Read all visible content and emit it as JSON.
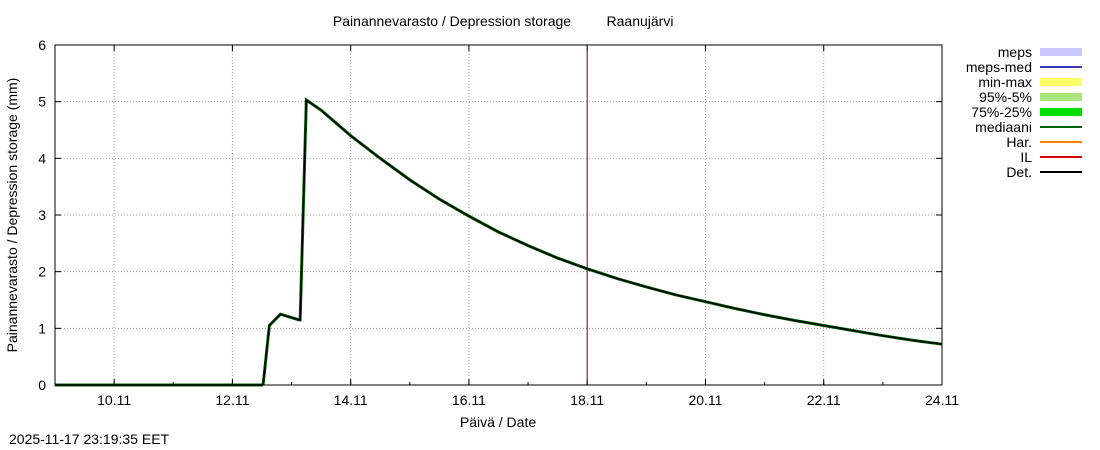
{
  "chart_data": {
    "type": "line",
    "title": "Painannevarasto / Depression storage",
    "station": "Raanujärvi",
    "xlabel": "Päivä / Date",
    "ylabel": "Painannevarasto / Depression storage (mm)",
    "xlim": [
      "2025-11-09",
      "2025-11-24"
    ],
    "ylim": [
      0,
      6
    ],
    "x_ticks": [
      "10.11",
      "12.11",
      "14.11",
      "16.11",
      "18.11",
      "20.11",
      "22.11",
      "24.11"
    ],
    "y_ticks": [
      "0",
      "1",
      "2",
      "3",
      "4",
      "5",
      "6"
    ],
    "grid": true,
    "legend_position": "right",
    "legend": [
      {
        "label": "meps",
        "color": "#c8c8ff",
        "style": "band"
      },
      {
        "label": "meps-med",
        "color": "#3a3ab8",
        "style": "line"
      },
      {
        "label": "min-max",
        "color": "#ffff66",
        "style": "band"
      },
      {
        "label": "95%-5%",
        "color": "#a8e87a",
        "style": "band"
      },
      {
        "label": "75%-25%",
        "color": "#00e000",
        "style": "band"
      },
      {
        "label": "mediaani",
        "color": "#006400",
        "style": "line"
      },
      {
        "label": "Har.",
        "color": "#ff8000",
        "style": "line"
      },
      {
        "label": "IL",
        "color": "#e00000",
        "style": "line"
      },
      {
        "label": "Det.",
        "color": "#000000",
        "style": "line"
      }
    ],
    "now_marker": "2025-11-18",
    "now_marker_color": "#8b0000",
    "series": [
      {
        "name": "Det.",
        "color": "#000000",
        "x": [
          "2025-11-09 00:00",
          "2025-11-11 00:00",
          "2025-11-12 12:00",
          "2025-11-12 12:30",
          "2025-11-12 15:00",
          "2025-11-12 19:30",
          "2025-11-13 03:00",
          "2025-11-13 03:30",
          "2025-11-13 06:00",
          "2025-11-13 12:00",
          "2025-11-14 00:00",
          "2025-11-14 12:00",
          "2025-11-15 00:00",
          "2025-11-15 12:00",
          "2025-11-16 00:00",
          "2025-11-16 12:00",
          "2025-11-17 00:00",
          "2025-11-17 12:00",
          "2025-11-18 00:00",
          "2025-11-18 12:00",
          "2025-11-19 00:00",
          "2025-11-19 12:00",
          "2025-11-20 00:00",
          "2025-11-20 12:00",
          "2025-11-21 00:00",
          "2025-11-21 12:00",
          "2025-11-22 00:00",
          "2025-11-22 12:00",
          "2025-11-23 00:00",
          "2025-11-23 12:00",
          "2025-11-24 00:00"
        ],
        "y": [
          0,
          0,
          0,
          0.02,
          1.05,
          1.25,
          1.15,
          1.15,
          5.03,
          4.85,
          4.4,
          4.0,
          3.62,
          3.28,
          2.98,
          2.7,
          2.46,
          2.24,
          2.05,
          1.88,
          1.73,
          1.59,
          1.47,
          1.35,
          1.24,
          1.14,
          1.05,
          0.96,
          0.87,
          0.79,
          0.72
        ]
      }
    ]
  },
  "timestamp": "2025-11-17 23:19:35 EET"
}
